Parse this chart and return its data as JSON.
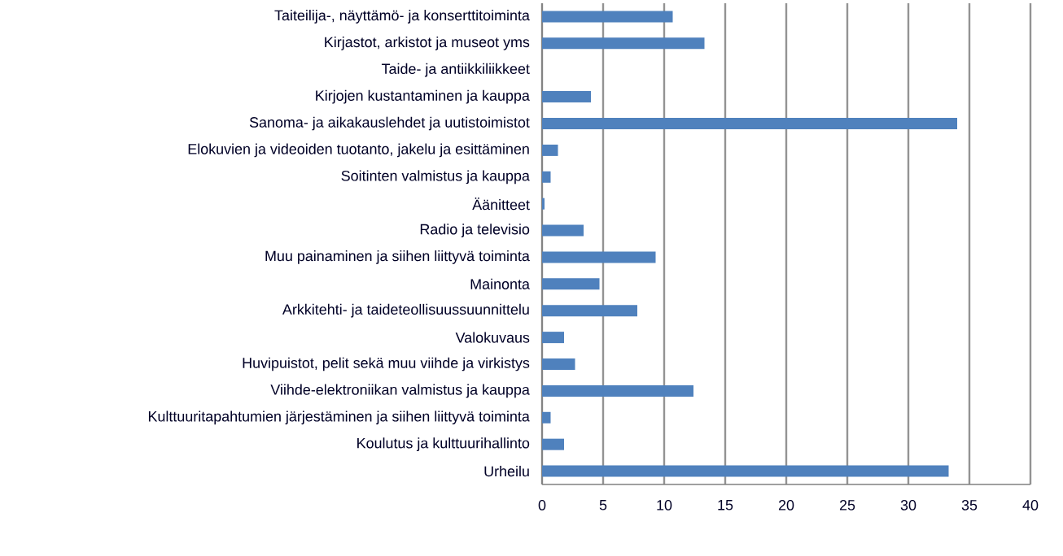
{
  "chart_data": {
    "type": "bar",
    "orientation": "horizontal",
    "categories": [
      "Taiteilija-, näyttämö- ja konserttitoiminta",
      "Kirjastot, arkistot ja museot yms",
      "Taide- ja antiikkiliikkeet",
      "Kirjojen kustantaminen ja kauppa",
      "Sanoma- ja aikakauslehdet ja uutistoimistot",
      "Elokuvien ja videoiden tuotanto, jakelu ja esittäminen",
      "Soitinten valmistus ja kauppa",
      "Äänitteet",
      "Radio ja televisio",
      "Muu painaminen ja siihen liittyvä toiminta",
      "Mainonta",
      "Arkkitehti- ja taideteollisuussuunnittelu",
      "Valokuvaus",
      "Huvipuistot, pelit sekä muu viihde ja virkistys",
      "Viihde-elektroniikan valmistus ja kauppa",
      "Kulttuuritapahtumien järjestäminen ja siihen liittyvä toiminta",
      "Koulutus ja kulttuurihallinto",
      "Urheilu"
    ],
    "values": [
      10.7,
      13.3,
      0,
      4.0,
      34.0,
      1.3,
      0.7,
      0.2,
      3.4,
      9.3,
      4.7,
      7.8,
      1.8,
      2.7,
      12.4,
      0.7,
      1.8,
      33.3
    ],
    "color": "#4f81bd",
    "xlim": [
      0,
      40
    ],
    "xticks": [
      0,
      5,
      10,
      15,
      20,
      25,
      30,
      35,
      40
    ],
    "grid": "x"
  }
}
